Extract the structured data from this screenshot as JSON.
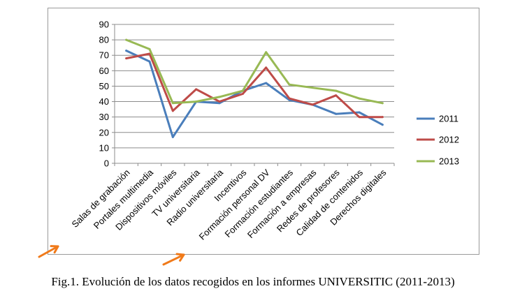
{
  "caption": "Fig.1. Evolución de los datos recogidos en los informes UNIVERSITIC (2011-2013)",
  "chart_data": {
    "type": "line",
    "categories": [
      "Salas de grabación",
      "Portales multimedia",
      "Dispositivos móviles",
      "TV universitaria",
      "Radio universitaria",
      "Incentivos",
      "Formación personal DV",
      "Formación estudiantes",
      "Formación a empresas",
      "Redes de profesores",
      "Calidad de contenidos",
      "Derechos digitales"
    ],
    "ylim": [
      0,
      90
    ],
    "yticks": [
      0,
      10,
      20,
      30,
      40,
      50,
      60,
      70,
      80,
      90
    ],
    "grid": true,
    "legend_position": "right",
    "series": [
      {
        "name": "2011",
        "color": "#4a7ebb",
        "values": [
          73,
          66,
          17,
          40,
          39,
          47,
          52,
          41,
          38,
          32,
          33,
          25
        ]
      },
      {
        "name": "2012",
        "color": "#be4b48",
        "values": [
          68,
          71,
          34,
          48,
          40,
          45,
          62,
          42,
          38,
          44,
          30,
          30
        ]
      },
      {
        "name": "2013",
        "color": "#98b954",
        "values": [
          80,
          74,
          39,
          40,
          43,
          47,
          72,
          51,
          49,
          47,
          42,
          39
        ]
      }
    ]
  },
  "annotations": [
    {
      "name": "arrow-marker-salas",
      "color": "#f07a1a"
    },
    {
      "name": "arrow-marker-formacion",
      "color": "#f07a1a"
    }
  ]
}
